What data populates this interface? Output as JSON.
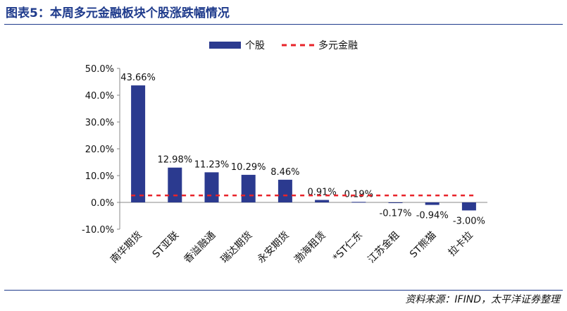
{
  "header": {
    "title": "图表5：本周多元金融板块个股涨跌幅情况"
  },
  "footer": {
    "source": "资料来源：IFIND，太平洋证券整理"
  },
  "chart_data": {
    "type": "bar",
    "categories": [
      "南华期货",
      "ST亚联",
      "香溢融通",
      "瑞达期货",
      "永安期货",
      "渤海租赁",
      "*ST仁东",
      "江苏金租",
      "ST熊猫",
      "拉卡拉"
    ],
    "series": [
      {
        "name": "个股",
        "type": "bar",
        "color": "#2b3a8f",
        "values": [
          43.66,
          12.98,
          11.23,
          10.29,
          8.46,
          0.91,
          0.19,
          -0.17,
          -0.94,
          -3.0
        ],
        "labels": [
          "43.66%",
          "12.98%",
          "11.23%",
          "10.29%",
          "8.46%",
          "0.91%",
          "0.19%",
          "-0.17%",
          "-0.94%",
          "-3.00%"
        ]
      },
      {
        "name": "多元金融",
        "type": "line",
        "style": "dashed",
        "color": "#e8232a",
        "value": 2.6
      }
    ],
    "ylim": [
      -10,
      50
    ],
    "yticks": [
      -10,
      0,
      10,
      20,
      30,
      40,
      50
    ],
    "ytick_labels": [
      "-10.0%",
      "0.0%",
      "10.0%",
      "20.0%",
      "30.0%",
      "40.0%",
      "50.0%"
    ],
    "legend_position": "top-center",
    "grid": false
  }
}
